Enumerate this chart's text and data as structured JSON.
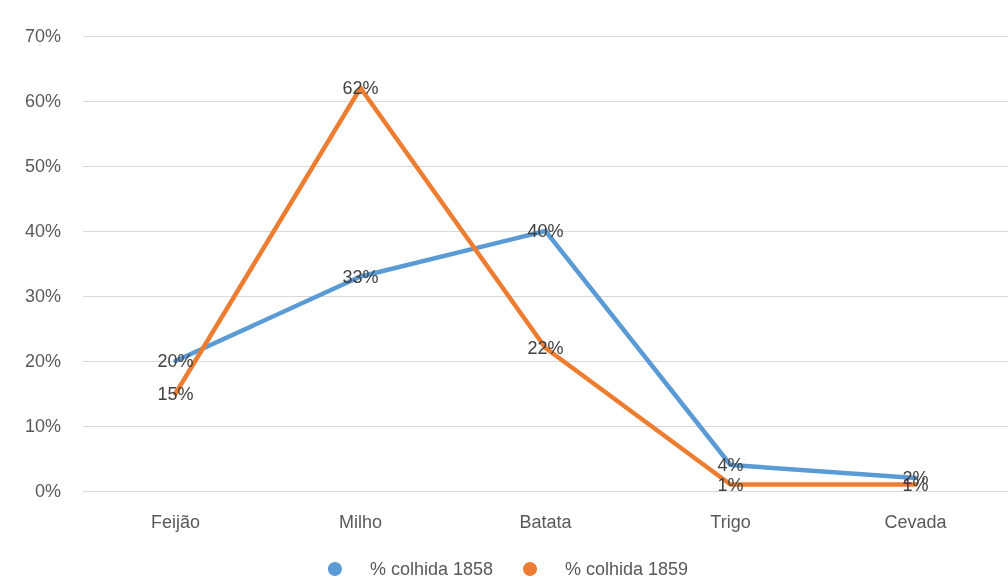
{
  "chart_data": {
    "type": "line",
    "categories": [
      "Feijão",
      "Milho",
      "Batata",
      "Trigo",
      "Cevada"
    ],
    "series": [
      {
        "name": "% colhida 1858",
        "color": "#5b9bd5",
        "values": [
          20,
          33,
          40,
          4,
          2
        ],
        "value_labels": [
          "20%",
          "33%",
          "40%",
          "4%",
          "2%"
        ]
      },
      {
        "name": "% colhida 1859",
        "color": "#ed7d31",
        "values": [
          15,
          62,
          22,
          1,
          1
        ],
        "value_labels": [
          "15%",
          "62%",
          "22%",
          "1%",
          "1%"
        ]
      }
    ],
    "ylim": [
      0,
      70
    ],
    "yticks": [
      {
        "value": 0,
        "label": "0%"
      },
      {
        "value": 10,
        "label": "10%"
      },
      {
        "value": 20,
        "label": "20%"
      },
      {
        "value": 30,
        "label": "30%"
      },
      {
        "value": 40,
        "label": "40%"
      },
      {
        "value": 50,
        "label": "50%"
      },
      {
        "value": 60,
        "label": "60%"
      },
      {
        "value": 70,
        "label": "70%"
      }
    ],
    "grid": "y",
    "legend": "bottom",
    "marker": "none",
    "line_style": "solid"
  }
}
